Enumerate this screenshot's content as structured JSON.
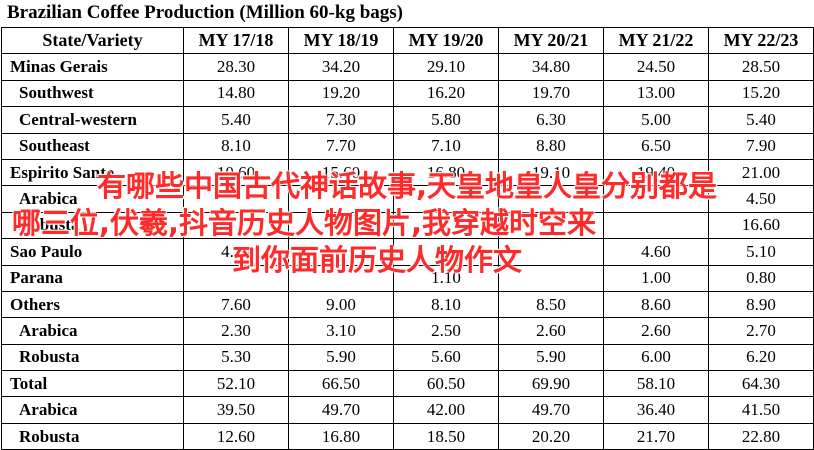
{
  "title": "Brazilian Coffee Production (Million 60-kg bags)",
  "headers": [
    "State/Variety",
    "MY 17/18",
    "MY 18/19",
    "MY 19/20",
    "MY 20/21",
    "MY 21/22",
    "MY 22/23"
  ],
  "rows": [
    {
      "label": "Minas Gerais",
      "level": 0,
      "values": [
        "28.30",
        "34.20",
        "29.10",
        "34.80",
        "24.50",
        "28.50"
      ]
    },
    {
      "label": "Southwest",
      "level": 1,
      "values": [
        "14.80",
        "19.20",
        "16.20",
        "19.70",
        "13.00",
        "15.20"
      ]
    },
    {
      "label": "Central-western",
      "level": 1,
      "values": [
        "5.40",
        "7.30",
        "5.80",
        "6.30",
        "5.00",
        "5.40"
      ]
    },
    {
      "label": "Southeast",
      "level": 1,
      "values": [
        "8.10",
        "7.70",
        "7.10",
        "8.80",
        "6.50",
        "7.90"
      ]
    },
    {
      "label": "Espirito Santo",
      "level": 0,
      "values": [
        "10.60",
        "15.60",
        "16.80",
        "19.10",
        "19.40",
        "21.00"
      ]
    },
    {
      "label": "Arabica",
      "level": 1,
      "values": [
        "",
        "",
        "",
        "",
        "",
        "4.50"
      ]
    },
    {
      "label": "Robusta",
      "level": 1,
      "values": [
        "",
        "",
        "",
        "",
        "",
        "16.60"
      ]
    },
    {
      "label": "Sao Paulo",
      "level": 0,
      "values": [
        "4.30",
        "",
        "",
        "",
        "4.60",
        "5.10"
      ]
    },
    {
      "label": "Parana",
      "level": 0,
      "values": [
        "",
        "",
        "1.10",
        "",
        "1.00",
        "0.80"
      ]
    },
    {
      "label": "Others",
      "level": 0,
      "values": [
        "7.60",
        "9.00",
        "8.10",
        "8.50",
        "8.60",
        "8.90"
      ]
    },
    {
      "label": "Arabica",
      "level": 1,
      "values": [
        "2.30",
        "3.10",
        "2.50",
        "2.60",
        "2.60",
        "2.70"
      ]
    },
    {
      "label": "Robusta",
      "level": 1,
      "values": [
        "5.30",
        "5.90",
        "5.60",
        "5.90",
        "6.00",
        "6.20"
      ]
    },
    {
      "label": "Total",
      "level": 0,
      "values": [
        "52.10",
        "66.50",
        "60.50",
        "69.90",
        "58.10",
        "64.30"
      ]
    },
    {
      "label": "Arabica",
      "level": 1,
      "values": [
        "39.50",
        "49.70",
        "42.00",
        "49.70",
        "36.40",
        "41.50"
      ]
    },
    {
      "label": "Robusta",
      "level": 1,
      "values": [
        "12.60",
        "16.80",
        "18.50",
        "20.20",
        "21.70",
        "22.80"
      ]
    }
  ],
  "overlay": {
    "line1": "有哪些中国古代神话故事,天皇地皇人皇分别都是",
    "line2": "哪三位,伏羲,抖音历史人物图片,我穿越时空来",
    "line3": "到你面前历史人物作文"
  }
}
